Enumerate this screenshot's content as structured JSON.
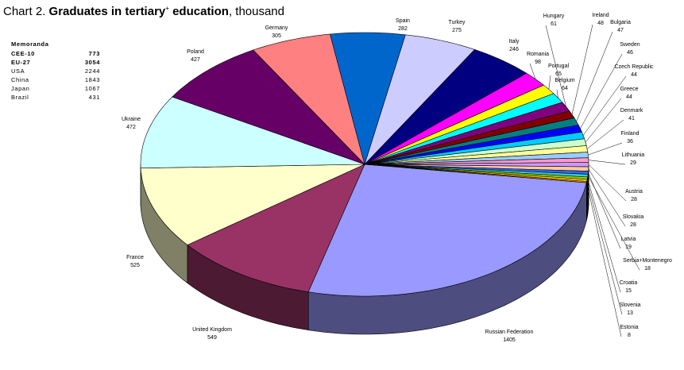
{
  "title": {
    "prefix": "Chart 2. ",
    "bold": "Graduates in tertiary",
    "sup": "+",
    "bold2": " education",
    "suffix": ", thousand"
  },
  "memoranda": {
    "header": "Memoranda",
    "rows": [
      {
        "name": "CEE-10",
        "value": "773",
        "bold": true
      },
      {
        "name": "EU-27",
        "value": "3054",
        "bold": true
      },
      {
        "name": "USA",
        "value": "2244",
        "bold": false
      },
      {
        "name": "China",
        "value": "1843",
        "bold": false
      },
      {
        "name": "Japan",
        "value": "1067",
        "bold": false
      },
      {
        "name": "Brazil",
        "value": "431",
        "bold": false
      }
    ]
  },
  "chart_data": {
    "type": "pie",
    "title": "Chart 2. Graduates in tertiary+ education, thousand",
    "unit": "thousand",
    "slices": [
      {
        "name": "Russian Federation",
        "value": 1405,
        "color": "#9999ff"
      },
      {
        "name": "United Kingdom",
        "value": 549,
        "color": "#993366"
      },
      {
        "name": "France",
        "value": 525,
        "color": "#ffffcc"
      },
      {
        "name": "Ukraine",
        "value": 472,
        "color": "#ccffff"
      },
      {
        "name": "Poland",
        "value": 427,
        "color": "#660066"
      },
      {
        "name": "Germany",
        "value": 305,
        "color": "#ff8080"
      },
      {
        "name": "Spain",
        "value": 282,
        "color": "#0066cc"
      },
      {
        "name": "Turkey",
        "value": 275,
        "color": "#ccccff"
      },
      {
        "name": "Italy",
        "value": 246,
        "color": "#000080"
      },
      {
        "name": "Romania",
        "value": 98,
        "color": "#ff00ff"
      },
      {
        "name": "Portugal",
        "value": 65,
        "color": "#ffff00"
      },
      {
        "name": "Belgium",
        "value": 64,
        "color": "#00ffff"
      },
      {
        "name": "Hungary",
        "value": 61,
        "color": "#800080"
      },
      {
        "name": "Ireland",
        "value": 48,
        "color": "#800000"
      },
      {
        "name": "Bulgaria",
        "value": 47,
        "color": "#008080"
      },
      {
        "name": "Sweden",
        "value": 46,
        "color": "#0000ff"
      },
      {
        "name": "Czech Republic",
        "value": 44,
        "color": "#00ccff"
      },
      {
        "name": "Greece",
        "value": 44,
        "color": "#ccffcc"
      },
      {
        "name": "Denmark",
        "value": 41,
        "color": "#ffff99"
      },
      {
        "name": "Finland",
        "value": 36,
        "color": "#99ccff"
      },
      {
        "name": "Lithuania",
        "value": 29,
        "color": "#ff99cc"
      },
      {
        "name": "Austria",
        "value": 28,
        "color": "#cc99ff"
      },
      {
        "name": "Slovakia",
        "value": 28,
        "color": "#ffcc99"
      },
      {
        "name": "Latvia",
        "value": 19,
        "color": "#3366ff"
      },
      {
        "name": "Serbia+Montenegro",
        "value": 18,
        "color": "#33cccc"
      },
      {
        "name": "Croatia",
        "value": 15,
        "color": "#99cc00"
      },
      {
        "name": "Slovenia",
        "value": 13,
        "color": "#ffcc00"
      },
      {
        "name": "Estonia",
        "value": 8,
        "color": "#ff9900"
      }
    ],
    "legend": "none",
    "three_d": true
  }
}
